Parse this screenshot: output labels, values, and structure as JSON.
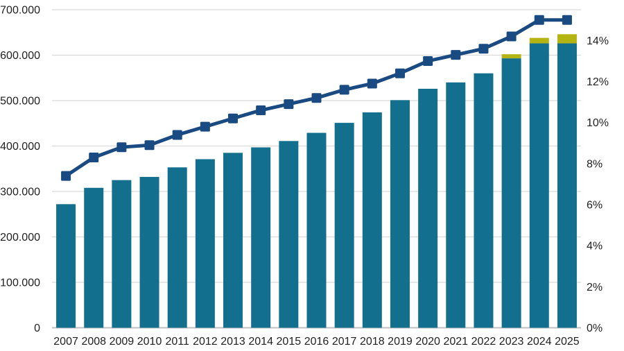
{
  "chart_data": {
    "type": "bar",
    "subtype": "combo-bar-line-dual-axis",
    "title": "",
    "xlabel": "",
    "ylabel_left": "",
    "ylabel_right": "",
    "legend": false,
    "grid": true,
    "categories": [
      "2007",
      "2008",
      "2009",
      "2010",
      "2011",
      "2012",
      "2013",
      "2014",
      "2015",
      "2016",
      "2017",
      "2018",
      "2019",
      "2020",
      "2021",
      "2022",
      "2023",
      "2024",
      "2025"
    ],
    "series": [
      {
        "id": "bars",
        "type": "bar",
        "axis": "left",
        "color": "#12708E",
        "values": [
          272000,
          308000,
          325000,
          332000,
          353000,
          371000,
          385000,
          397000,
          411000,
          429000,
          451000,
          474000,
          501000,
          526000,
          540000,
          560000,
          593000,
          626000,
          626000
        ]
      },
      {
        "id": "bar_caps",
        "type": "bar-stacked-top",
        "axis": "left",
        "color": "#B4B413",
        "values": [
          0,
          0,
          0,
          0,
          0,
          0,
          0,
          0,
          0,
          0,
          0,
          0,
          0,
          0,
          0,
          0,
          9000,
          12000,
          20000
        ]
      },
      {
        "id": "line",
        "type": "line",
        "axis": "right",
        "color": "#1A4A82",
        "marker": "square",
        "values": [
          7.4,
          8.3,
          8.8,
          8.9,
          9.4,
          9.8,
          10.2,
          10.6,
          10.9,
          11.2,
          11.6,
          11.9,
          12.4,
          13.0,
          13.3,
          13.6,
          14.2,
          15.0,
          15.0
        ]
      }
    ],
    "axis_left": {
      "min": 0,
      "max": 700000,
      "tick_labels": [
        "0",
        "100.000",
        "200.000",
        "300.000",
        "400.000",
        "500.000",
        "600.000",
        "700.000"
      ],
      "tick_values": [
        0,
        100000,
        200000,
        300000,
        400000,
        500000,
        600000,
        700000
      ]
    },
    "axis_right": {
      "min": 0,
      "max": 15.5,
      "tick_labels": [
        "0%",
        "2%",
        "4%",
        "6%",
        "8%",
        "10%",
        "12%",
        "14%"
      ],
      "tick_values": [
        0,
        2,
        4,
        6,
        8,
        10,
        12,
        14
      ]
    },
    "colors": {
      "bar": "#12708E",
      "bar_cap": "#B4B413",
      "line": "#1A4A82",
      "gridline": "#D9D9D9",
      "axis_line": "#BFBFBF",
      "tick_text": "#1f1f1f"
    }
  }
}
